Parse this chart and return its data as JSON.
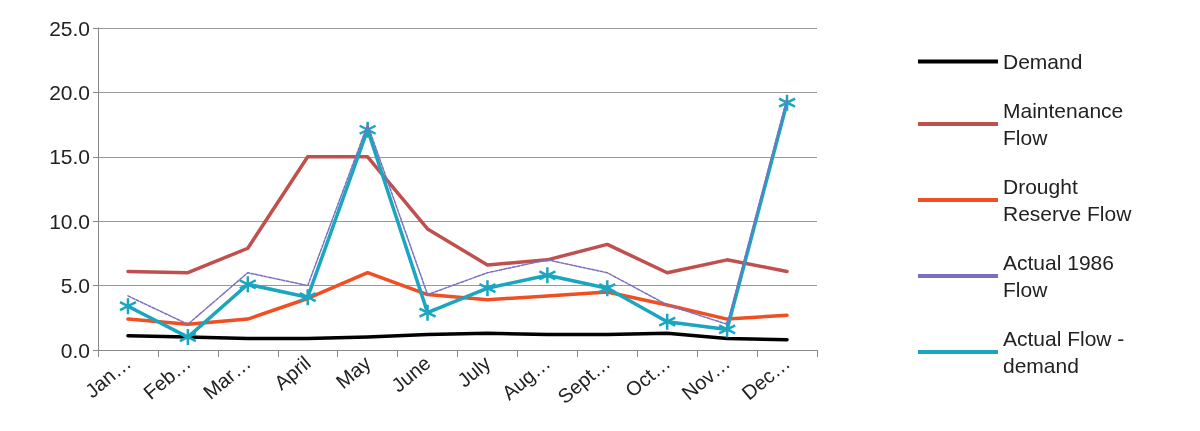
{
  "chart_data": {
    "type": "line",
    "categories": [
      "Jan…",
      "Feb…",
      "Mar…",
      "April",
      "May",
      "June",
      "July",
      "Aug…",
      "Sept…",
      "Oct…",
      "Nov…",
      "Dec…"
    ],
    "ylim": [
      0,
      25
    ],
    "yticks": [
      {
        "value": 0,
        "label": "0.0"
      },
      {
        "value": 5,
        "label": "5.0"
      },
      {
        "value": 10,
        "label": "10.0"
      },
      {
        "value": 15,
        "label": "15.0"
      },
      {
        "value": 20,
        "label": "20.0"
      },
      {
        "value": 25,
        "label": "25.0"
      }
    ],
    "grid": "y",
    "legend": "right",
    "marker": "none",
    "line_style": "solid",
    "series": [
      {
        "name": "Demand",
        "color": "#000000",
        "values": [
          1.1,
          1.0,
          0.9,
          0.9,
          1.0,
          1.2,
          1.3,
          1.2,
          1.2,
          1.3,
          0.9,
          0.8
        ]
      },
      {
        "name": "Maintenance Flow",
        "color": "#c0504d",
        "values": [
          6.1,
          6.0,
          7.9,
          15.0,
          15.0,
          9.4,
          6.6,
          7.0,
          8.2,
          6.0,
          7.0,
          6.1
        ]
      },
      {
        "name": "Drought Reserve Flow",
        "color": "#f04e23",
        "values": [
          2.4,
          2.0,
          2.4,
          4.0,
          6.0,
          4.3,
          3.9,
          4.2,
          4.5,
          3.5,
          2.4,
          2.7
        ]
      },
      {
        "name": "Actual 1986 Flow",
        "color": "#7b6fc0",
        "line_style": "dashed",
        "values": [
          4.2,
          2.0,
          6.0,
          5.0,
          17.5,
          4.3,
          6.0,
          7.0,
          6.0,
          3.5,
          2.0,
          19.5
        ]
      },
      {
        "name": "Actual Flow - demand",
        "color": "#1aa6c0",
        "marker": "cross",
        "values": [
          3.4,
          1.0,
          5.1,
          4.1,
          17.1,
          2.9,
          4.8,
          5.8,
          4.8,
          2.2,
          1.6,
          19.2
        ]
      }
    ]
  }
}
